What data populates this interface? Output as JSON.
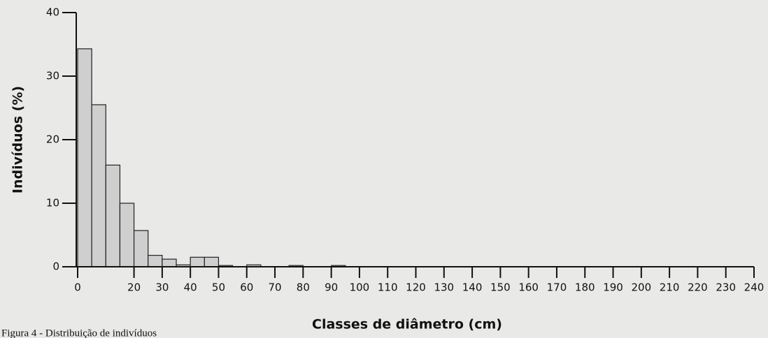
{
  "chart_data": {
    "type": "histogram",
    "bins": [
      0,
      5,
      10,
      15,
      20,
      25,
      30,
      35,
      40,
      45,
      50,
      55,
      60,
      65,
      70,
      75,
      80,
      85,
      90,
      95,
      100
    ],
    "values": [
      34.3,
      25.5,
      16,
      10,
      5.7,
      1.8,
      1.2,
      0.3,
      1.5,
      1.5,
      0.2,
      0,
      0.3,
      0,
      0,
      0.2,
      0,
      0,
      0.2,
      0
    ],
    "color": "#cfcfcf",
    "xlabel": "Classes de diâmetro (cm)",
    "ylabel": "Indivíduos (%)",
    "xlim": [
      0,
      240
    ],
    "xticks": [
      0,
      20,
      30,
      40,
      50,
      60,
      70,
      80,
      90,
      100,
      110,
      120,
      130,
      140,
      150,
      160,
      170,
      180,
      190,
      200,
      210,
      220,
      230,
      240
    ],
    "ylim": [
      0,
      40
    ],
    "yticks": [
      0,
      10,
      20,
      30,
      40
    ],
    "caption": "Figura 4 - Distribuição de indivíduos"
  }
}
